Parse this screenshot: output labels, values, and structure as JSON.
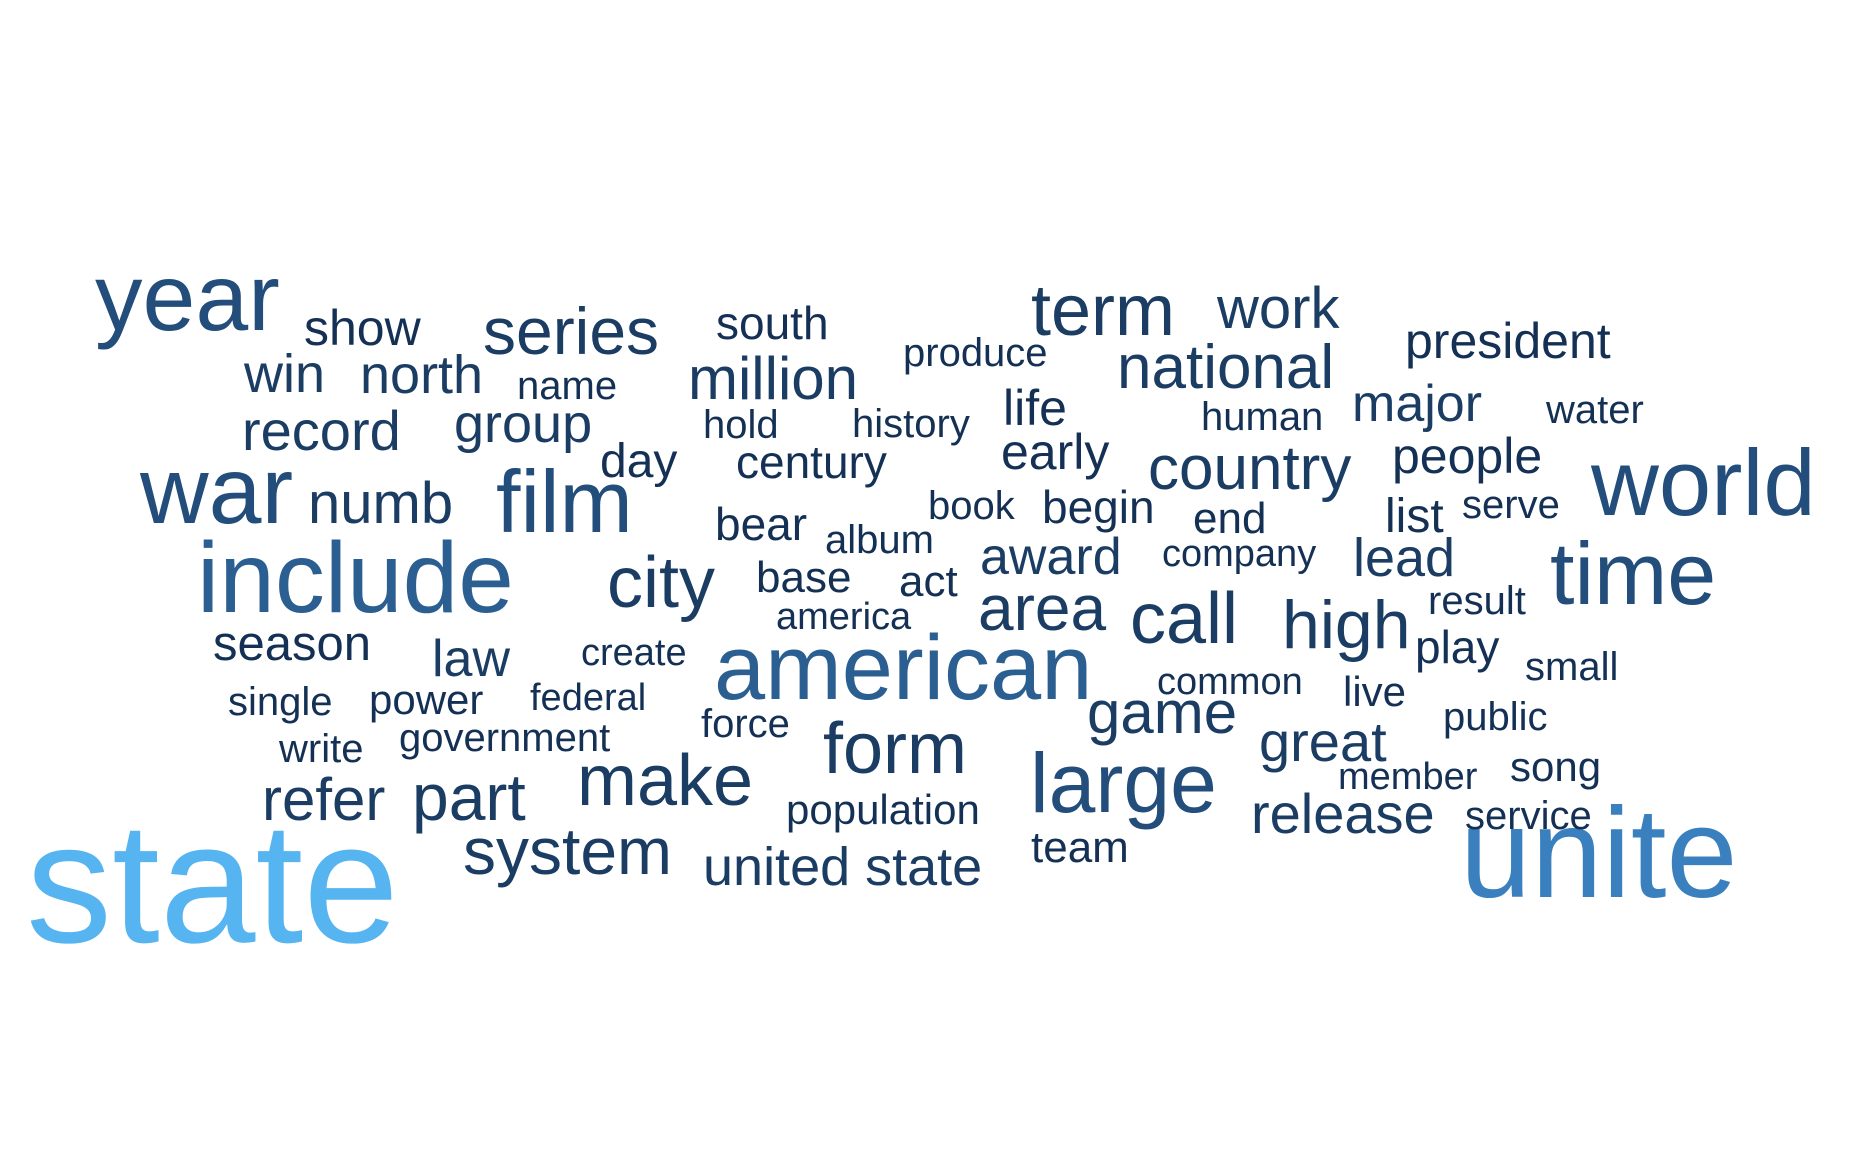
{
  "palette": {
    "c0": "#143054",
    "c1": "#1b3d63",
    "c2": "#234d7a",
    "c3": "#2c5f91",
    "c4": "#3a80bf",
    "c5": "#56b4f0"
  },
  "words": [
    {
      "text": "state",
      "color": "c5"
    },
    {
      "text": "unite",
      "color": "c4"
    },
    {
      "text": "american",
      "color": "c3"
    },
    {
      "text": "include",
      "color": "c3"
    },
    {
      "text": "world",
      "color": "c2"
    },
    {
      "text": "year",
      "color": "c2"
    },
    {
      "text": "war",
      "color": "c2"
    },
    {
      "text": "time",
      "color": "c2"
    },
    {
      "text": "large",
      "color": "c2"
    },
    {
      "text": "film",
      "color": "c2"
    },
    {
      "text": "term",
      "color": "c1"
    },
    {
      "text": "call",
      "color": "c1"
    },
    {
      "text": "city",
      "color": "c1"
    },
    {
      "text": "form",
      "color": "c1"
    },
    {
      "text": "make",
      "color": "c1"
    },
    {
      "text": "high",
      "color": "c1"
    },
    {
      "text": "series",
      "color": "c1"
    },
    {
      "text": "part",
      "color": "c1"
    },
    {
      "text": "system",
      "color": "c1"
    },
    {
      "text": "area",
      "color": "c1"
    },
    {
      "text": "country",
      "color": "c1"
    },
    {
      "text": "national",
      "color": "c1"
    },
    {
      "text": "million",
      "color": "c1"
    },
    {
      "text": "game",
      "color": "c1"
    },
    {
      "text": "refer",
      "color": "c1"
    },
    {
      "text": "release",
      "color": "c1"
    },
    {
      "text": "great",
      "color": "c1"
    },
    {
      "text": "numb",
      "color": "c1"
    },
    {
      "text": "record",
      "color": "c1"
    },
    {
      "text": "work",
      "color": "c1"
    },
    {
      "text": "win",
      "color": "c1"
    },
    {
      "text": "north",
      "color": "c1"
    },
    {
      "text": "group",
      "color": "c1"
    },
    {
      "text": "major",
      "color": "c1"
    },
    {
      "text": "award",
      "color": "c1"
    },
    {
      "text": "lead",
      "color": "c1"
    },
    {
      "text": "law",
      "color": "c1"
    },
    {
      "text": "united state",
      "color": "c1"
    },
    {
      "text": "season",
      "color": "c0"
    },
    {
      "text": "president",
      "color": "c0"
    },
    {
      "text": "early",
      "color": "c0"
    },
    {
      "text": "people",
      "color": "c0"
    },
    {
      "text": "life",
      "color": "c0"
    },
    {
      "text": "show",
      "color": "c0"
    },
    {
      "text": "south",
      "color": "c0"
    },
    {
      "text": "day",
      "color": "c0"
    },
    {
      "text": "century",
      "color": "c0"
    },
    {
      "text": "bear",
      "color": "c0"
    },
    {
      "text": "begin",
      "color": "c0"
    },
    {
      "text": "list",
      "color": "c0"
    },
    {
      "text": "play",
      "color": "c0"
    },
    {
      "text": "power",
      "color": "c0"
    },
    {
      "text": "act",
      "color": "c0"
    },
    {
      "text": "base",
      "color": "c0"
    },
    {
      "text": "team",
      "color": "c0"
    },
    {
      "text": "government",
      "color": "c0"
    },
    {
      "text": "song",
      "color": "c0"
    },
    {
      "text": "end",
      "color": "c0"
    },
    {
      "text": "population",
      "color": "c0"
    },
    {
      "text": "history",
      "color": "c0"
    },
    {
      "text": "hold",
      "color": "c0"
    },
    {
      "text": "produce",
      "color": "c0"
    },
    {
      "text": "human",
      "color": "c0"
    },
    {
      "text": "water",
      "color": "c0"
    },
    {
      "text": "serve",
      "color": "c0"
    },
    {
      "text": "result",
      "color": "c0"
    },
    {
      "text": "single",
      "color": "c0"
    },
    {
      "text": "force",
      "color": "c0"
    },
    {
      "text": "live",
      "color": "c0"
    },
    {
      "text": "public",
      "color": "c0"
    },
    {
      "text": "small",
      "color": "c0"
    },
    {
      "text": "book",
      "color": "c0"
    },
    {
      "text": "album",
      "color": "c0"
    },
    {
      "text": "company",
      "color": "c0"
    },
    {
      "text": "federal",
      "color": "c0"
    },
    {
      "text": "create",
      "color": "c0"
    },
    {
      "text": "common",
      "color": "c0"
    },
    {
      "text": "member",
      "color": "c0"
    },
    {
      "text": "service",
      "color": "c0"
    },
    {
      "text": "america",
      "color": "c0"
    },
    {
      "text": "write",
      "color": "c0"
    },
    {
      "text": "name",
      "color": "c0"
    }
  ]
}
